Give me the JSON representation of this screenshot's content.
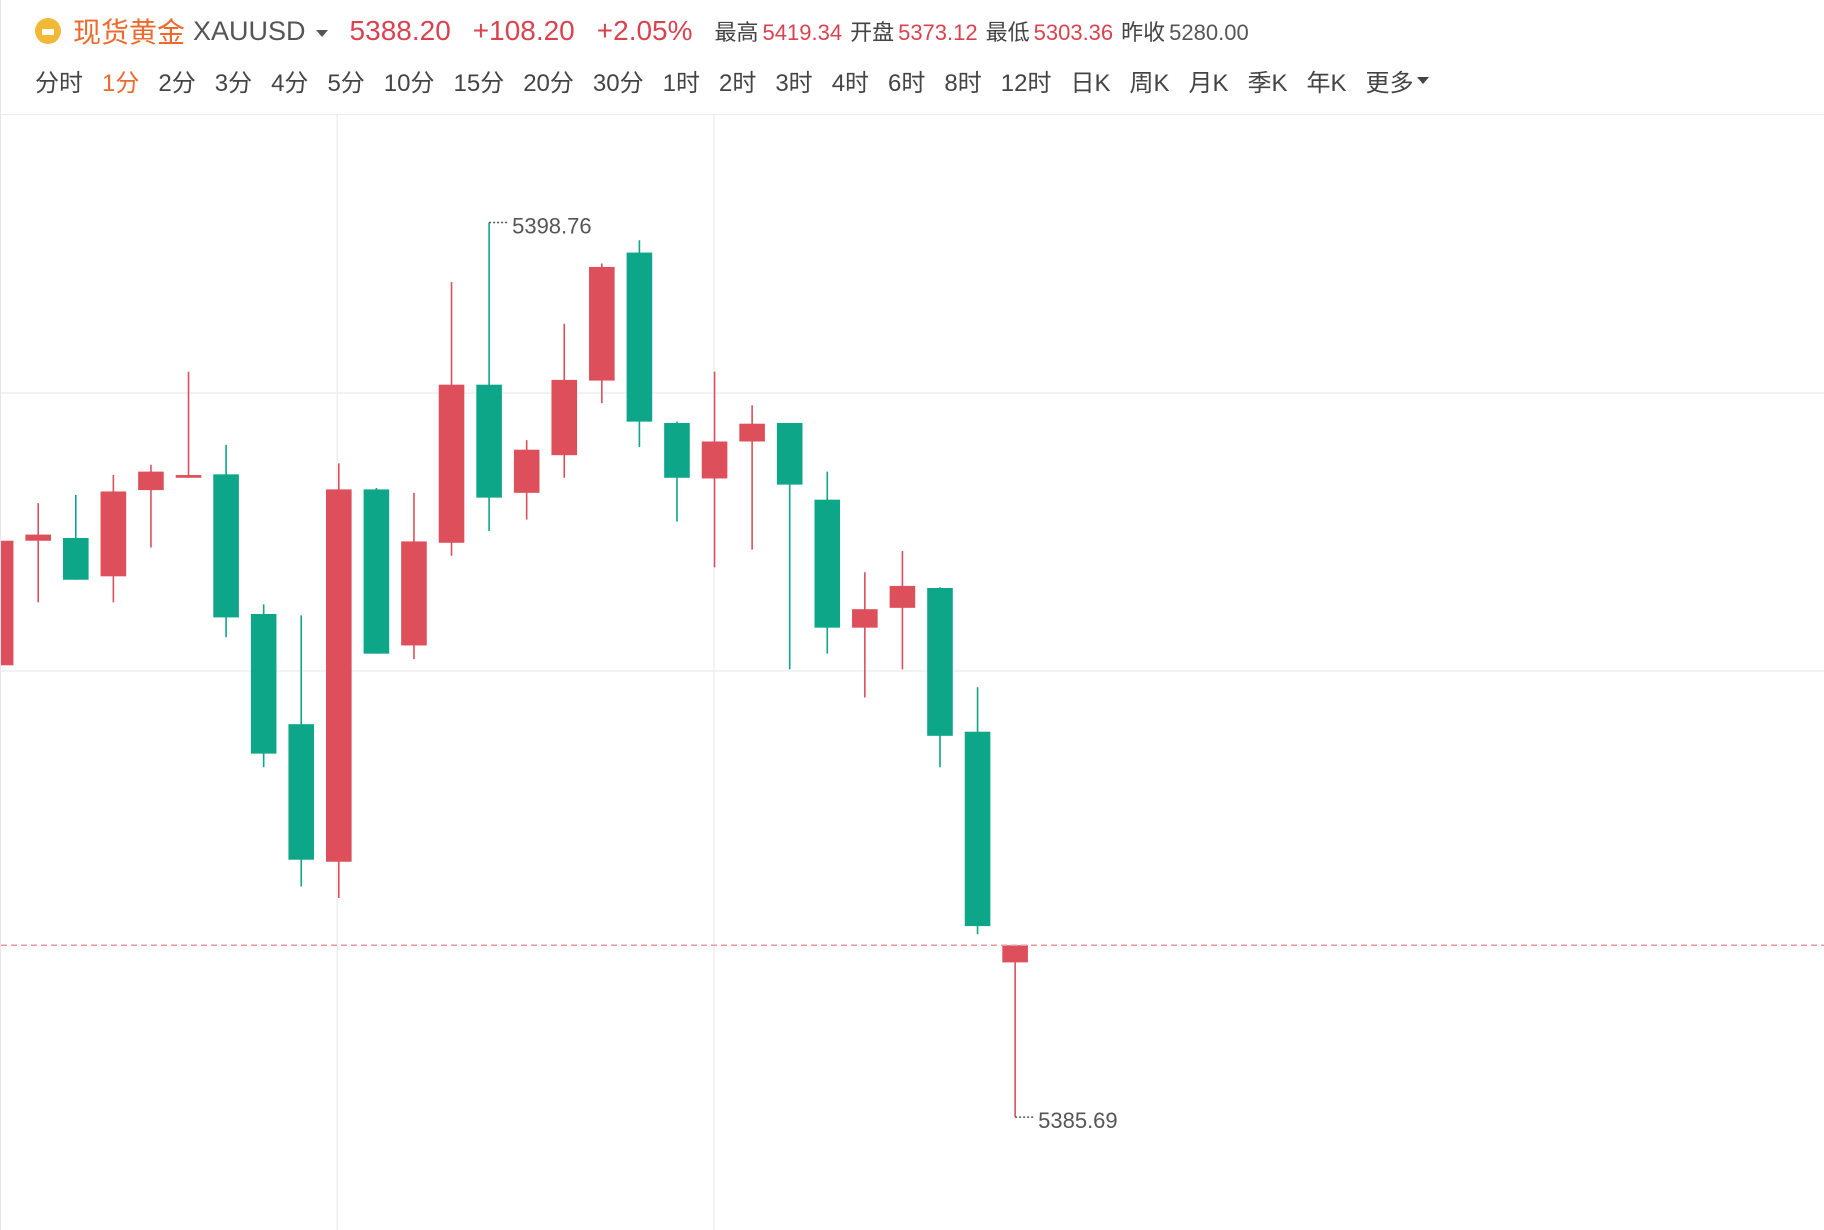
{
  "header": {
    "name": "现货黄金",
    "symbol": "XAUUSD",
    "price": "5388.20",
    "change": "+108.20",
    "change_pct": "+2.05%",
    "stats": [
      {
        "label": "最高",
        "value": "5419.34"
      },
      {
        "label": "开盘",
        "value": "5373.12"
      },
      {
        "label": "最低",
        "value": "5303.36"
      },
      {
        "label": "昨收",
        "value": "5280.00"
      }
    ]
  },
  "periods": {
    "items": [
      "分时",
      "1分",
      "2分",
      "3分",
      "4分",
      "5分",
      "10分",
      "15分",
      "20分",
      "30分",
      "1时",
      "2时",
      "3时",
      "4时",
      "6时",
      "8时",
      "12时",
      "日K",
      "周K",
      "月K",
      "季K",
      "年K"
    ],
    "active": 1,
    "more": "更多"
  },
  "chart_data": {
    "type": "candlestick",
    "open": [
      5392.29,
      5394.11,
      5394.15,
      5393.59,
      5394.85,
      5395.03,
      5395.08,
      5393.04,
      5391.43,
      5389.42,
      5394.86,
      5392.58,
      5394.08,
      5396.39,
      5394.81,
      5395.36,
      5396.45,
      5398.32,
      5395.83,
      5395.02,
      5395.56,
      5395.83,
      5394.71,
      5392.84,
      5393.13,
      5393.42,
      5391.32,
      5387.95
    ],
    "high": [
      5394.11,
      5394.66,
      5394.78,
      5395.07,
      5395.22,
      5396.58,
      5395.51,
      5393.18,
      5393.02,
      5395.24,
      5394.88,
      5394.81,
      5397.89,
      5398.76,
      5395.58,
      5397.28,
      5398.16,
      5398.5,
      5395.85,
      5396.58,
      5396.09,
      5395.83,
      5395.12,
      5393.65,
      5393.96,
      5393.43,
      5391.97,
      5388.2
    ],
    "low": [
      5392.29,
      5393.21,
      5393.54,
      5393.21,
      5394.01,
      5395.03,
      5392.7,
      5390.8,
      5389.06,
      5388.89,
      5392.46,
      5392.38,
      5393.89,
      5394.25,
      5394.42,
      5395.03,
      5396.12,
      5395.48,
      5394.39,
      5393.72,
      5393.98,
      5392.23,
      5392.46,
      5391.82,
      5392.23,
      5390.8,
      5388.36,
      5385.69
    ],
    "close": [
      5394.11,
      5394.2,
      5393.54,
      5394.83,
      5395.12,
      5395.07,
      5392.99,
      5391.0,
      5389.45,
      5394.86,
      5392.46,
      5394.1,
      5396.39,
      5394.74,
      5395.44,
      5396.46,
      5398.11,
      5395.85,
      5395.03,
      5395.56,
      5395.82,
      5394.93,
      5392.84,
      5393.11,
      5393.45,
      5391.26,
      5388.48,
      5388.2
    ],
    "up_color": "#dd4f5b",
    "down_color": "#0da688",
    "ylim": [
      5384.04,
      5400.33
    ],
    "grid": true
  }
}
